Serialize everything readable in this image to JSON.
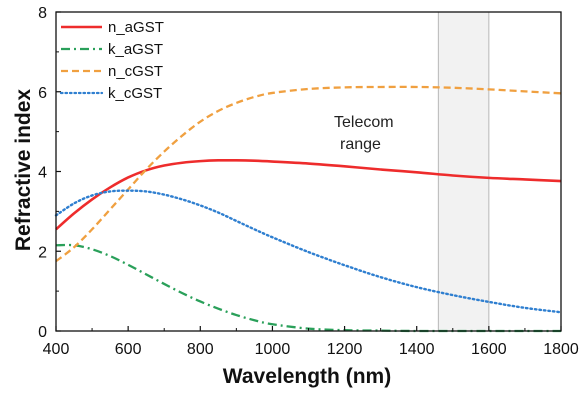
{
  "chart_data": {
    "type": "line",
    "title": "",
    "xlabel": "Wavelength (nm)",
    "ylabel": "Refractive index",
    "xlim": [
      400,
      1800
    ],
    "ylim": [
      0,
      8
    ],
    "xticks": [
      400,
      600,
      800,
      1000,
      1200,
      1400,
      1600,
      1800
    ],
    "yticks": [
      0,
      2,
      4,
      6,
      8
    ],
    "grid": false,
    "legend_position": "top-left",
    "shaded_region": {
      "x": [
        1460,
        1600
      ],
      "label_lines": [
        "Telecom",
        "range"
      ],
      "color": "#f2f2f2"
    },
    "series": [
      {
        "name": "n_aGST",
        "color": "#ee2c2c",
        "style": "solid",
        "x": [
          400,
          450,
          500,
          550,
          600,
          650,
          700,
          750,
          800,
          850,
          900,
          950,
          1000,
          1100,
          1200,
          1300,
          1400,
          1500,
          1600,
          1700,
          1800
        ],
        "y": [
          2.55,
          2.95,
          3.3,
          3.6,
          3.85,
          4.03,
          4.15,
          4.22,
          4.26,
          4.28,
          4.28,
          4.27,
          4.25,
          4.2,
          4.13,
          4.05,
          3.98,
          3.9,
          3.84,
          3.8,
          3.76
        ]
      },
      {
        "name": "k_aGST",
        "color": "#2aa05a",
        "style": "dashdot",
        "x": [
          400,
          450,
          500,
          550,
          600,
          650,
          700,
          750,
          800,
          850,
          900,
          950,
          1000,
          1100,
          1200,
          1300,
          1400,
          1500,
          1600,
          1700,
          1800
        ],
        "y": [
          2.15,
          2.15,
          2.05,
          1.88,
          1.66,
          1.42,
          1.18,
          0.95,
          0.74,
          0.56,
          0.4,
          0.27,
          0.17,
          0.06,
          0.02,
          0.01,
          0.0,
          0.0,
          0.0,
          0.0,
          0.0
        ]
      },
      {
        "name": "n_cGST",
        "color": "#f0a040",
        "style": "dashed",
        "x": [
          400,
          450,
          500,
          550,
          600,
          650,
          700,
          750,
          800,
          850,
          900,
          950,
          1000,
          1100,
          1200,
          1300,
          1400,
          1500,
          1600,
          1700,
          1800
        ],
        "y": [
          1.75,
          2.1,
          2.55,
          3.05,
          3.55,
          4.05,
          4.5,
          4.9,
          5.25,
          5.52,
          5.72,
          5.87,
          5.97,
          6.07,
          6.11,
          6.12,
          6.12,
          6.1,
          6.06,
          6.01,
          5.96
        ]
      },
      {
        "name": "k_cGST",
        "color": "#2f7fd0",
        "style": "dotted",
        "x": [
          400,
          450,
          500,
          550,
          600,
          650,
          700,
          750,
          800,
          850,
          900,
          950,
          1000,
          1100,
          1200,
          1300,
          1400,
          1500,
          1600,
          1700,
          1800
        ],
        "y": [
          2.9,
          3.2,
          3.4,
          3.5,
          3.52,
          3.5,
          3.42,
          3.3,
          3.15,
          2.97,
          2.76,
          2.55,
          2.35,
          1.98,
          1.65,
          1.35,
          1.1,
          0.9,
          0.73,
          0.58,
          0.47
        ]
      }
    ]
  }
}
